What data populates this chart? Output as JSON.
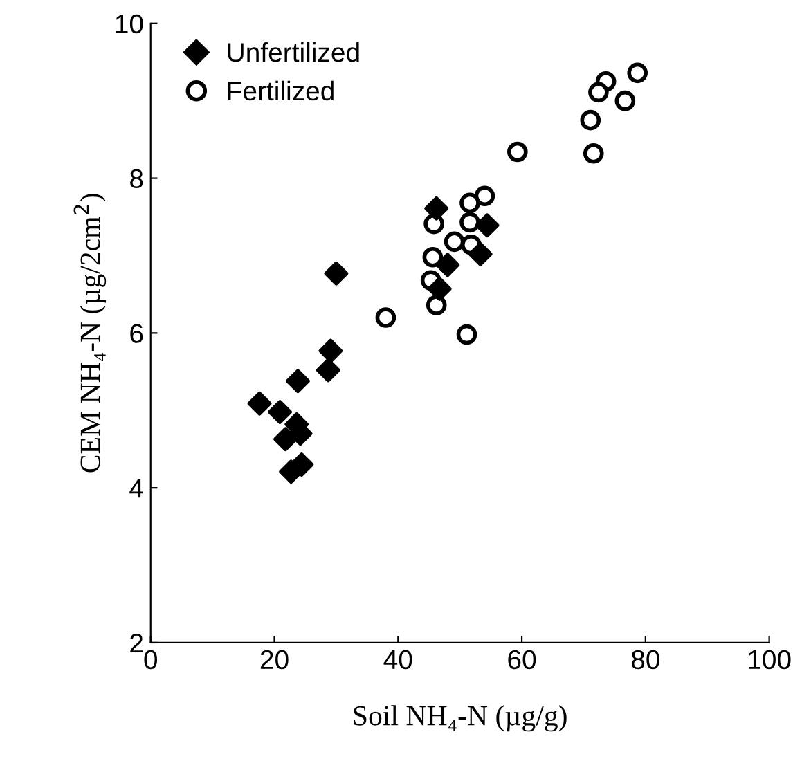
{
  "chart_data": {
    "type": "scatter",
    "xlabel": "Soil NH₄-N (µg/g)",
    "ylabel": "CEM NH₄-N (µg/2cm$^{2}$)",
    "xlim": [
      0,
      100
    ],
    "ylim": [
      2,
      10
    ],
    "xticks": [
      0,
      20,
      40,
      60,
      80,
      100
    ],
    "yticks": [
      2,
      4,
      6,
      8,
      10
    ],
    "legend": "top left",
    "grid": false,
    "series": [
      {
        "name": "Unfertilized",
        "color": "#000000",
        "marker": "diamond",
        "x": [
          29.1,
          28.7,
          23.8,
          17.6,
          20.9,
          23.6,
          24.2,
          21.8,
          24.4,
          22.7,
          30.0,
          46.2,
          54.4,
          53.3,
          48.0,
          46.7
        ],
        "values": [
          5.77,
          5.52,
          5.38,
          5.09,
          4.98,
          4.82,
          4.7,
          4.63,
          4.3,
          4.21,
          6.77,
          7.61,
          7.39,
          7.02,
          6.88,
          6.57
        ]
      },
      {
        "name": "Fertilized",
        "color": "#000000",
        "marker": "circle",
        "x": [
          78.7,
          73.6,
          72.4,
          76.7,
          71.1,
          71.6,
          59.3,
          54.0,
          51.6,
          45.8,
          51.6,
          49.1,
          51.8,
          45.6,
          45.3,
          46.2,
          51.1,
          38.0
        ],
        "values": [
          9.36,
          9.25,
          9.11,
          9.0,
          8.75,
          8.32,
          8.34,
          7.77,
          7.68,
          7.41,
          7.43,
          7.18,
          7.14,
          6.98,
          6.68,
          6.36,
          5.98,
          6.2
        ]
      }
    ]
  }
}
